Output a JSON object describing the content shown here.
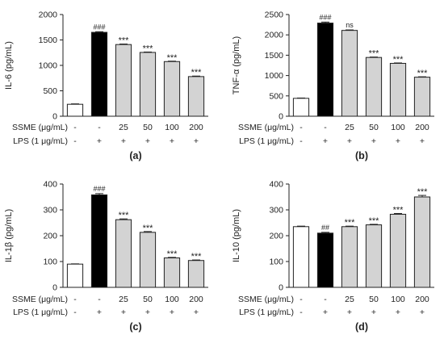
{
  "chart_data": [
    {
      "type": "bar",
      "panel_label": "(a)",
      "ylabel": "IL-6 (pg/mL)",
      "ylim": [
        0,
        2000
      ],
      "yticks": [
        0,
        500,
        1000,
        1500,
        2000
      ],
      "ssme_row_label": "SSME (μg/mL)",
      "lps_row_label": "LPS (1 μg/mL)",
      "ssme": [
        "-",
        "-",
        "25",
        "50",
        "100",
        "200"
      ],
      "lps": [
        "-",
        "+",
        "+",
        "+",
        "+",
        "+"
      ],
      "values": [
        235,
        1650,
        1410,
        1255,
        1075,
        780
      ],
      "errors": [
        8,
        12,
        10,
        8,
        8,
        10
      ],
      "annotations": [
        "",
        "###",
        "***",
        "***",
        "***",
        "***"
      ],
      "bar_colors": [
        "#ffffff",
        "#000000",
        "#d3d3d3",
        "#d3d3d3",
        "#d3d3d3",
        "#d3d3d3"
      ]
    },
    {
      "type": "bar",
      "panel_label": "(b)",
      "ylabel": "TNF-α (pg/mL)",
      "ylim": [
        0,
        2500
      ],
      "yticks": [
        0,
        500,
        1000,
        1500,
        2000,
        2500
      ],
      "ssme_row_label": "SSME (μg/mL)",
      "lps_row_label": "LPS (1 μg/mL)",
      "ssme": [
        "-",
        "-",
        "25",
        "50",
        "100",
        "200"
      ],
      "lps": [
        "-",
        "+",
        "+",
        "+",
        "+",
        "+"
      ],
      "values": [
        440,
        2290,
        2110,
        1445,
        1300,
        960
      ],
      "errors": [
        8,
        25,
        12,
        10,
        10,
        10
      ],
      "annotations": [
        "",
        "###",
        "ns",
        "***",
        "***",
        "***"
      ],
      "bar_colors": [
        "#ffffff",
        "#000000",
        "#d3d3d3",
        "#d3d3d3",
        "#d3d3d3",
        "#d3d3d3"
      ]
    },
    {
      "type": "bar",
      "panel_label": "(c)",
      "ylabel": "IL-1β (pg/mL)",
      "ylim": [
        0,
        400
      ],
      "yticks": [
        0,
        100,
        200,
        300,
        400
      ],
      "ssme_row_label": "SSME (μg/mL)",
      "lps_row_label": "LPS (1 μg/mL)",
      "ssme": [
        "-",
        "-",
        "25",
        "50",
        "100",
        "200"
      ],
      "lps": [
        "-",
        "+",
        "+",
        "+",
        "+",
        "+"
      ],
      "values": [
        90,
        358,
        262,
        213,
        114,
        104
      ],
      "errors": [
        1,
        5,
        3,
        3,
        2,
        2
      ],
      "annotations": [
        "",
        "###",
        "***",
        "***",
        "***",
        "***"
      ],
      "bar_colors": [
        "#ffffff",
        "#000000",
        "#d3d3d3",
        "#d3d3d3",
        "#d3d3d3",
        "#d3d3d3"
      ]
    },
    {
      "type": "bar",
      "panel_label": "(d)",
      "ylabel": "IL-10 (pg/mL)",
      "ylim": [
        0,
        400
      ],
      "yticks": [
        0,
        100,
        200,
        300,
        400
      ],
      "ssme_row_label": "SSME (μg/mL)",
      "lps_row_label": "LPS (1 μg/mL)",
      "ssme": [
        "-",
        "-",
        "25",
        "50",
        "100",
        "200"
      ],
      "lps": [
        "-",
        "+",
        "+",
        "+",
        "+",
        "+"
      ],
      "values": [
        235,
        210,
        235,
        242,
        283,
        350
      ],
      "errors": [
        2,
        3,
        2,
        2,
        3,
        6
      ],
      "annotations": [
        "",
        "##",
        "***",
        "***",
        "***",
        "***"
      ],
      "bar_colors": [
        "#ffffff",
        "#000000",
        "#d3d3d3",
        "#d3d3d3",
        "#d3d3d3",
        "#d3d3d3"
      ]
    }
  ]
}
